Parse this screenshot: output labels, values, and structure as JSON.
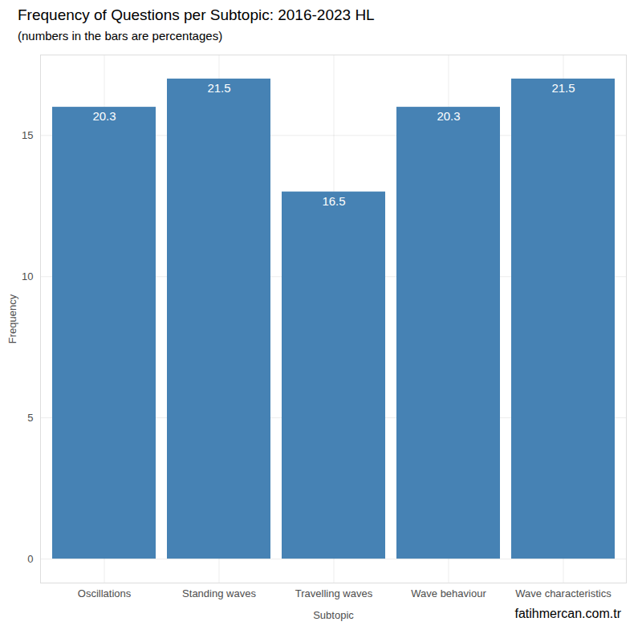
{
  "chart_data": {
    "type": "bar",
    "title": "Frequency of Questions per Subtopic: 2016-2023 HL",
    "subtitle": "(numbers in the bars are percentages)",
    "x_label": "Subtopic",
    "y_label": "Frequency",
    "caption": "fatihmercan.com.tr",
    "categories": [
      "Oscillations",
      "Standing waves",
      "Travelling waves",
      "Wave behaviour",
      "Wave characteristics"
    ],
    "values": [
      16,
      17,
      13,
      16,
      17
    ],
    "percentages": [
      20.3,
      21.5,
      16.5,
      20.3,
      21.5
    ],
    "color": "#4682b4",
    "ylim": [
      -0.85,
      17.85
    ],
    "yticks": [
      0,
      5,
      10,
      15
    ],
    "grid": true
  }
}
